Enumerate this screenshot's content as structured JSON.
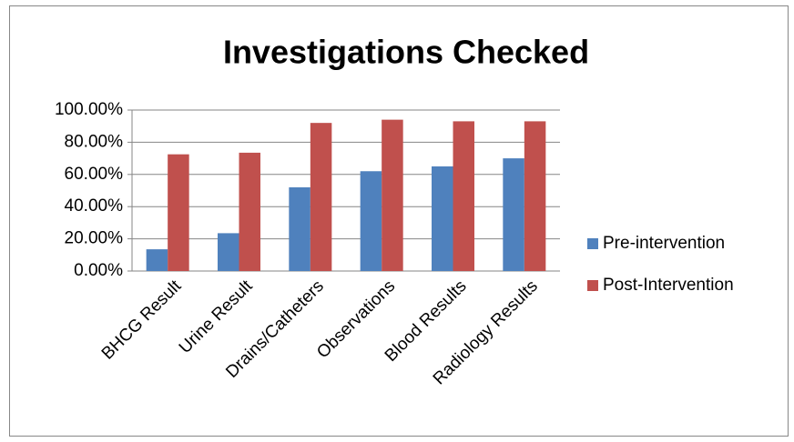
{
  "chart_data": {
    "type": "bar",
    "title": "Investigations Checked",
    "categories": [
      "BHCG Result",
      "Urine Result",
      "Drains/Catheters",
      "Observations",
      "Blood Results",
      "Radiology Results"
    ],
    "series": [
      {
        "name": "Pre-intervention",
        "color": "#4f81bd",
        "values": [
          13.5,
          23.5,
          52,
          62,
          65,
          70
        ]
      },
      {
        "name": "Post-Intervention",
        "color": "#c0504d",
        "values": [
          72.5,
          73.5,
          92,
          94,
          93,
          93
        ]
      }
    ],
    "ylim": [
      0,
      100
    ],
    "yticks": [
      {
        "value": 0,
        "label": "0.00%"
      },
      {
        "value": 20,
        "label": "20.00%"
      },
      {
        "value": 40,
        "label": "40.00%"
      },
      {
        "value": 60,
        "label": "60.00%"
      },
      {
        "value": 80,
        "label": "80.00%"
      },
      {
        "value": 100,
        "label": "100.00%"
      }
    ],
    "grid": true,
    "legend": "right"
  }
}
